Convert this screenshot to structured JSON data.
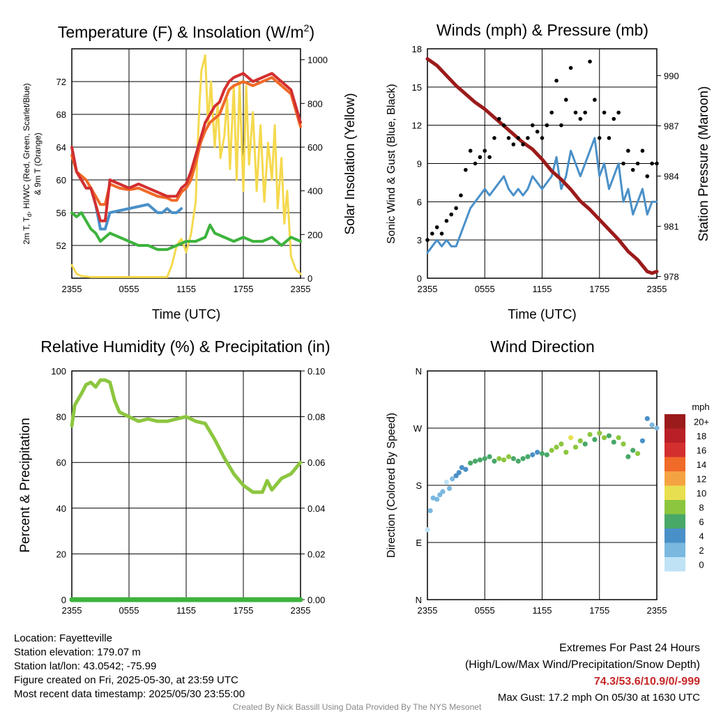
{
  "chart_data": [
    {
      "type": "line",
      "title": "Temperature (F) & Insolation (W/m²)",
      "xlabel": "Time (UTC)",
      "ylabel": "2m T, Td, HI/WC (Red, Green, Scarlet/Blue) & 9m T (Orange)",
      "y2label": "Solar Insolation (Yellow)",
      "xticks": [
        "2355",
        "0555",
        "1155",
        "1755",
        "2355"
      ],
      "ylim": [
        48,
        76
      ],
      "yticks": [
        52,
        56,
        60,
        64,
        68,
        72
      ],
      "y2lim": [
        0,
        1050
      ],
      "y2ticks": [
        0,
        200,
        400,
        600,
        800,
        1000
      ],
      "x_hours": [
        0,
        6,
        12,
        18,
        24
      ],
      "series": [
        {
          "name": "2m T",
          "color": "#d32f2f",
          "axis": "left",
          "x": [
            0,
            0.5,
            1,
            1.5,
            2,
            2.5,
            3,
            3.5,
            4,
            5,
            6,
            7,
            8,
            9,
            10,
            10.5,
            11,
            11.5,
            12,
            12.5,
            13,
            13.5,
            14,
            14.5,
            15,
            15.5,
            16,
            16.5,
            17,
            18,
            19,
            20,
            21,
            22,
            23,
            23.5,
            24
          ],
          "y": [
            64,
            61,
            60,
            59,
            59,
            57,
            55,
            55,
            60,
            59.5,
            59,
            59.5,
            59,
            58.5,
            58,
            58,
            58,
            59,
            59.5,
            61,
            63,
            65,
            67,
            68,
            69,
            69.5,
            71,
            72,
            72.5,
            73,
            72,
            72.5,
            73,
            72,
            71,
            69,
            67
          ]
        },
        {
          "name": "9m T",
          "color": "#f06a28",
          "axis": "left",
          "x": [
            0,
            0.5,
            1,
            1.5,
            2,
            2.5,
            3,
            3.5,
            4,
            5,
            6,
            7,
            8,
            9,
            10,
            10.5,
            11,
            11.5,
            12,
            12.5,
            13,
            13.5,
            14,
            14.5,
            15,
            15.5,
            16,
            16.5,
            17,
            18,
            19,
            20,
            21,
            22,
            23,
            23.5,
            24
          ],
          "y": [
            63,
            61,
            60.5,
            60,
            59,
            58,
            57,
            57,
            59.5,
            59,
            58.8,
            59,
            58.5,
            58,
            57.8,
            57.5,
            57.5,
            58.5,
            59,
            60,
            62,
            64.5,
            66,
            67,
            67.5,
            68,
            69.5,
            71,
            71.5,
            72,
            71.5,
            72,
            72.5,
            71.5,
            70.5,
            68.5,
            66.5
          ]
        },
        {
          "name": "HI/WC",
          "color": "#4a90c8",
          "axis": "left",
          "x": [
            0,
            0.5,
            1,
            1.5,
            2,
            2.5,
            3,
            3.5,
            4,
            8,
            8.5,
            9,
            9.5,
            10,
            10.5,
            11,
            11.5
          ],
          "y": [
            64,
            61,
            60,
            59,
            59,
            57,
            54,
            54,
            56,
            57,
            56.5,
            56,
            56,
            56.5,
            56,
            56,
            56.5
          ]
        },
        {
          "name": "Td",
          "color": "#3db33d",
          "axis": "left",
          "x": [
            0,
            0.5,
            1,
            1.5,
            2,
            2.5,
            3,
            3.5,
            4,
            5,
            6,
            7,
            8,
            9,
            10,
            11,
            12,
            13,
            14,
            14.5,
            15,
            16,
            17,
            18,
            19,
            20,
            21,
            22,
            23,
            24
          ],
          "y": [
            56,
            55.5,
            56,
            55,
            54,
            53.5,
            52.5,
            53,
            53.5,
            53,
            52.5,
            52,
            52,
            51.5,
            51.5,
            52,
            52.5,
            52.5,
            53,
            54.5,
            53.5,
            53,
            52.5,
            53,
            52.5,
            52.5,
            53,
            52,
            53,
            52.5
          ]
        },
        {
          "name": "Insolation",
          "color": "#f5d94e",
          "axis": "right",
          "x": [
            0,
            0.5,
            1,
            2,
            4,
            6,
            8,
            9,
            10,
            10.5,
            11,
            11.5,
            12,
            12.5,
            13,
            13.2,
            13.4,
            13.6,
            14,
            14.3,
            14.6,
            15,
            15.3,
            15.6,
            16,
            16.3,
            16.6,
            17,
            17.3,
            17.6,
            18,
            18.3,
            18.6,
            19,
            19.4,
            19.8,
            20.2,
            20.6,
            21,
            21.3,
            21.6,
            22,
            22.3,
            22.6,
            23,
            23.5,
            24
          ],
          "y": [
            60,
            20,
            10,
            5,
            5,
            5,
            5,
            5,
            5,
            60,
            150,
            180,
            120,
            200,
            350,
            600,
            800,
            950,
            1020,
            700,
            900,
            600,
            800,
            550,
            650,
            820,
            500,
            880,
            450,
            900,
            400,
            880,
            520,
            760,
            400,
            700,
            350,
            620,
            450,
            700,
            320,
            550,
            250,
            400,
            100,
            40,
            20
          ]
        }
      ]
    },
    {
      "type": "scatter",
      "title": "Winds (mph) & Pressure (mb)",
      "xlabel": "Time (UTC)",
      "ylabel": "Sonic Wind & Gust (Blue, Black)",
      "y2label": "Station Pressure (Maroon)",
      "xticks": [
        "2355",
        "0555",
        "1155",
        "1755",
        "2355"
      ],
      "ylim": [
        0,
        18
      ],
      "yticks": [
        0,
        3,
        6,
        9,
        12,
        15,
        18
      ],
      "y2lim": [
        977.9,
        991.6
      ],
      "y2ticks": [
        978,
        981,
        984,
        987,
        990
      ],
      "series": [
        {
          "name": "Sonic Wind",
          "color": "#4a90c8",
          "axis": "left",
          "x": [
            0,
            0.5,
            1,
            1.5,
            2,
            2.5,
            3,
            3.5,
            4,
            4.5,
            5,
            5.5,
            6,
            6.5,
            7,
            7.5,
            8,
            8.5,
            9,
            9.5,
            10,
            10.5,
            11,
            11.5,
            12,
            12.5,
            13,
            13.5,
            14,
            14.5,
            15,
            15.5,
            16,
            16.5,
            17,
            17.5,
            18,
            18.5,
            19,
            19.5,
            20,
            20.5,
            21,
            21.5,
            22,
            22.5,
            23,
            23.5,
            24
          ],
          "y": [
            2,
            2.5,
            3,
            2.5,
            3,
            2.5,
            2.5,
            3.5,
            4.5,
            5.5,
            6,
            6.5,
            7,
            6.5,
            7,
            7.5,
            8,
            7,
            6.5,
            7,
            6.5,
            7,
            8,
            7.5,
            7,
            7.5,
            8,
            9.5,
            7,
            8,
            10,
            9,
            8,
            9,
            10,
            11,
            8,
            9,
            7,
            8,
            9,
            6,
            7,
            5,
            6,
            7,
            5,
            6,
            6
          ]
        },
        {
          "name": "Gust",
          "color": "#000000",
          "axis": "left",
          "x": [
            0,
            0.5,
            1,
            1.5,
            2,
            2.5,
            3,
            3.5,
            4,
            4.5,
            5,
            5.5,
            6,
            6.5,
            7,
            7.5,
            8,
            8.5,
            9,
            9.5,
            10,
            10.5,
            11,
            11.5,
            12,
            12.5,
            13,
            13.5,
            14,
            14.5,
            15,
            15.5,
            16,
            16.5,
            17,
            17.5,
            18,
            18.5,
            19,
            19.5,
            20,
            20.5,
            21,
            21.5,
            22,
            22.5,
            23,
            23.5,
            24
          ],
          "y": [
            3,
            3.5,
            4,
            3.5,
            4.5,
            5,
            5.5,
            6.5,
            8.5,
            10,
            9,
            9.5,
            10,
            9.5,
            11,
            12.5,
            12,
            11,
            10.5,
            11,
            10.5,
            11,
            12,
            11.5,
            11,
            12,
            13,
            15.5,
            12,
            14,
            16.5,
            13,
            12.5,
            13,
            17,
            14,
            11,
            13,
            11,
            12.5,
            13,
            9,
            10,
            8.5,
            9,
            10,
            8,
            9,
            9
          ]
        },
        {
          "name": "Station Pressure",
          "color": "#9b1b1b",
          "axis": "right",
          "x": [
            0,
            1,
            2,
            3,
            4,
            5,
            6,
            7,
            8,
            9,
            10,
            11,
            12,
            13,
            14,
            15,
            16,
            17,
            18,
            19,
            20,
            21,
            22,
            23,
            23.5,
            24
          ],
          "y": [
            991,
            990.6,
            990,
            989.4,
            988.9,
            988.4,
            988,
            987.5,
            987,
            986.5,
            986,
            985.6,
            985,
            984.3,
            983.8,
            983.2,
            982.5,
            982,
            981.4,
            980.8,
            980.2,
            979.5,
            979,
            978.3,
            978.2,
            978.3
          ]
        }
      ]
    },
    {
      "type": "line",
      "title": "Relative Humidity (%) & Precipitation (in)",
      "ylabel": "Percent & Precipitation",
      "xticks": [
        "2355",
        "0555",
        "1155",
        "1755",
        "2355"
      ],
      "ylim": [
        0,
        100
      ],
      "yticks": [
        0,
        20,
        40,
        60,
        80,
        100
      ],
      "y2lim": [
        0,
        0.1
      ],
      "y2ticks": [
        "0.00",
        "0.02",
        "0.04",
        "0.06",
        "0.08",
        "0.10"
      ],
      "series": [
        {
          "name": "RH",
          "color": "#8cc63f",
          "axis": "left",
          "x": [
            0,
            0.3,
            1,
            1.5,
            2,
            2.5,
            3,
            3.5,
            4,
            4.5,
            5,
            5.5,
            6,
            7,
            8,
            9,
            10,
            11,
            12,
            13,
            14,
            15,
            16,
            17,
            18,
            19,
            20,
            20.5,
            21,
            22,
            23,
            24
          ],
          "y": [
            76,
            85,
            90,
            94,
            95,
            93,
            96,
            96,
            95,
            87,
            82,
            81,
            80,
            78,
            79,
            78,
            78,
            79,
            80,
            78,
            77,
            70,
            62,
            55,
            50,
            47,
            47,
            52,
            48,
            53,
            55,
            60
          ]
        },
        {
          "name": "Precipitation",
          "color": "#3db33d",
          "axis": "right",
          "x": [
            0,
            24
          ],
          "y": [
            0,
            0
          ]
        }
      ]
    },
    {
      "type": "scatter",
      "title": "Wind Direction",
      "ylabel": "Direction (Colored By Speed)",
      "xticks": [
        "2355",
        "0555",
        "1155",
        "1755",
        "2355"
      ],
      "yticks": [
        "N",
        "E",
        "S",
        "W",
        "N"
      ],
      "ylim": [
        0,
        360
      ],
      "colorbar": {
        "title": "mph",
        "labels": [
          "20+",
          "18",
          "16",
          "14",
          "12",
          "10",
          "8",
          "6",
          "4",
          "2",
          "0"
        ],
        "colors": [
          "#9b1b1b",
          "#b82025",
          "#d32f2f",
          "#f06a28",
          "#f5a342",
          "#e8df50",
          "#8cc63f",
          "#48a868",
          "#4a90c8",
          "#7ab8e0",
          "#bfe3f5"
        ]
      },
      "x": [
        0,
        0.3,
        0.6,
        1,
        1.3,
        1.6,
        2,
        2.3,
        2.6,
        3,
        3.3,
        3.6,
        4,
        4.5,
        5,
        5.5,
        6,
        6.5,
        7,
        7.5,
        8,
        8.5,
        9,
        9.5,
        10,
        10.5,
        11,
        11.5,
        12,
        12.5,
        13,
        13.5,
        14,
        14.5,
        15,
        15.5,
        16,
        16.5,
        17,
        17.5,
        18,
        18.5,
        19,
        19.5,
        20,
        20.5,
        21,
        21.5,
        22,
        22.5,
        23,
        23.5,
        24
      ],
      "y": [
        110,
        140,
        160,
        158,
        165,
        170,
        185,
        175,
        190,
        195,
        200,
        208,
        205,
        215,
        218,
        220,
        222,
        225,
        218,
        222,
        220,
        225,
        222,
        218,
        222,
        225,
        228,
        232,
        230,
        228,
        235,
        240,
        245,
        232,
        255,
        240,
        250,
        245,
        260,
        252,
        262,
        255,
        258,
        248,
        255,
        245,
        225,
        235,
        230,
        250,
        285,
        275,
        270
      ],
      "speed_mph": [
        1,
        2,
        3,
        2,
        2,
        3,
        1,
        2,
        3,
        4,
        5,
        4,
        5,
        6,
        7,
        7,
        6,
        6,
        7,
        8,
        8,
        8,
        7,
        6,
        6,
        6,
        5,
        5,
        6,
        7,
        8,
        8,
        9,
        9,
        10,
        8,
        9,
        7,
        8,
        7,
        8,
        8,
        6,
        6,
        8,
        9,
        7,
        6,
        8,
        5,
        4,
        3,
        3
      ]
    }
  ],
  "station_info": [
    "Location: Fayetteville",
    "Station elevation: 179.07 m",
    "Station lat/lon: 43.0542; -75.99",
    "Figure created on Fri, 2025-05-30, at 23:59 UTC",
    "Most recent data timestamp: 2025/05/30 23:55:00"
  ],
  "extremes": {
    "title": "Extremes For Past 24 Hours",
    "subtitle": "(High/Low/Max Wind/Precipitation/Snow Depth)",
    "values": "74.3/53.6/10.9/0/-999",
    "max_gust": "Max Gust: 17.2 mph On 05/30 at 1630 UTC"
  },
  "credit": "Created By Nick Bassill Using Data Provided By The NYS Mesonet"
}
